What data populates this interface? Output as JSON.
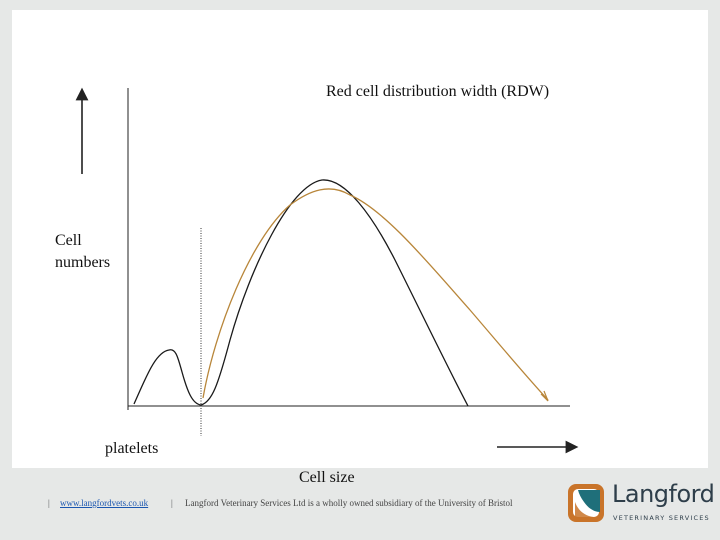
{
  "diagram": {
    "title": "Red cell distribution width (RDW)",
    "y_label": "Cell\nnumbers",
    "platelets_label": "platelets",
    "x_label": "Cell size"
  },
  "colors": {
    "narrow_curve": "#1a1a1a",
    "wide_curve": "#b8863a",
    "axis": "#222222"
  },
  "footer": {
    "separator": "|",
    "link": "www.langfordvets.co.uk",
    "text": "Langford Veterinary Services Ltd is a wholly owned subsidiary of the University of Bristol"
  },
  "logo": {
    "word": "Langford",
    "sub": "VETERINARY SERVICES"
  }
}
